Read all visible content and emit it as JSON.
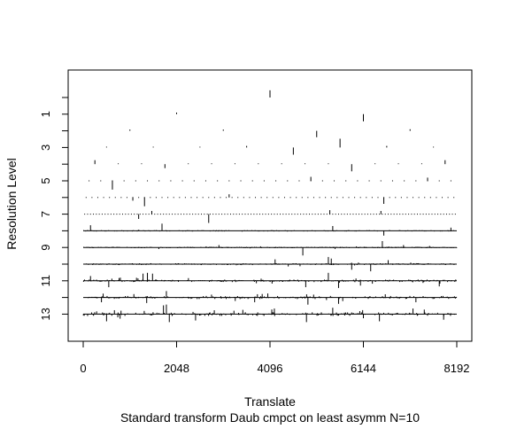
{
  "chart_data": {
    "type": "wavelet-coefficient-plot",
    "xlabel": "Translate",
    "ylabel": "Resolution Level",
    "subtitle": "Standard transform Daub cmpct on least asymm N=10",
    "x_ticks": [
      "0",
      "2048",
      "4096",
      "6144",
      "8192"
    ],
    "y_ticks": [
      "1",
      "3",
      "5",
      "7",
      "9",
      "11",
      "13"
    ],
    "xlim": [
      0,
      8192
    ],
    "ylim": [
      0,
      13
    ],
    "levels": [
      {
        "level": 0,
        "n": 1,
        "coefficients": [
          {
            "x": 4096,
            "amp": 0.45
          }
        ]
      },
      {
        "level": 1,
        "n": 2,
        "coefficients": [
          {
            "x": 2048,
            "amp": 0.1
          },
          {
            "x": 6144,
            "amp": -0.45
          }
        ]
      },
      {
        "level": 2,
        "n": 4,
        "coefficients": [
          {
            "x": 1024,
            "amp": 0.08
          },
          {
            "x": 3072,
            "amp": 0.08
          },
          {
            "x": 5120,
            "amp": -0.4
          },
          {
            "x": 7168,
            "amp": 0.1
          }
        ]
      },
      {
        "level": 3,
        "n": 8,
        "coefficients": [
          {
            "x": 512,
            "amp": 0.05
          },
          {
            "x": 1536,
            "amp": 0.05
          },
          {
            "x": 2560,
            "amp": 0.05
          },
          {
            "x": 3584,
            "amp": 0.1
          },
          {
            "x": 4608,
            "amp": -0.45
          },
          {
            "x": 5632,
            "amp": 0.55
          },
          {
            "x": 6656,
            "amp": 0.1
          },
          {
            "x": 7680,
            "amp": 0.05
          }
        ]
      },
      {
        "level": 4,
        "n": 16,
        "coefficients": [
          {
            "x": 256,
            "amp": 0.25
          },
          {
            "x": 768,
            "amp": 0.05
          },
          {
            "x": 1280,
            "amp": 0.05
          },
          {
            "x": 1792,
            "amp": -0.25
          },
          {
            "x": 2304,
            "amp": 0.05
          },
          {
            "x": 2816,
            "amp": 0.05
          },
          {
            "x": 3328,
            "amp": 0.05
          },
          {
            "x": 3840,
            "amp": 0.05
          },
          {
            "x": 4352,
            "amp": 0.05
          },
          {
            "x": 4864,
            "amp": 0.05
          },
          {
            "x": 5376,
            "amp": 0.05
          },
          {
            "x": 5888,
            "amp": -0.45
          },
          {
            "x": 6400,
            "amp": 0.05
          },
          {
            "x": 6912,
            "amp": 0.05
          },
          {
            "x": 7424,
            "amp": 0.05
          },
          {
            "x": 7936,
            "amp": 0.25
          }
        ]
      },
      {
        "level": 5,
        "n": 32,
        "base_amp": 0.04,
        "spikes": [
          {
            "x": 640,
            "amp": -0.55
          },
          {
            "x": 4992,
            "amp": 0.25
          },
          {
            "x": 7552,
            "amp": 0.2
          }
        ]
      },
      {
        "level": 6,
        "n": 64,
        "base_amp": 0.03,
        "spikes": [
          {
            "x": 1088,
            "amp": -0.2
          },
          {
            "x": 1344,
            "amp": -0.55
          },
          {
            "x": 3200,
            "amp": 0.2
          },
          {
            "x": 6592,
            "amp": -0.4
          }
        ]
      },
      {
        "level": 7,
        "n": 128,
        "base_amp": 0.03,
        "spikes": [
          {
            "x": 1216,
            "amp": -0.3
          },
          {
            "x": 1504,
            "amp": 0.2
          },
          {
            "x": 2752,
            "amp": -0.55
          },
          {
            "x": 5408,
            "amp": 0.25
          },
          {
            "x": 6528,
            "amp": 0.2
          }
        ]
      },
      {
        "level": 8,
        "n": 256,
        "base_amp": 0.03,
        "spikes": [
          {
            "x": 160,
            "amp": 0.35
          },
          {
            "x": 1728,
            "amp": 0.45
          },
          {
            "x": 5472,
            "amp": 0.3
          },
          {
            "x": 6592,
            "amp": -0.3
          },
          {
            "x": 8064,
            "amp": 0.2
          }
        ]
      },
      {
        "level": 9,
        "n": 512,
        "base_amp": 0.04,
        "spikes": [
          {
            "x": 2976,
            "amp": 0.15
          },
          {
            "x": 4816,
            "amp": -0.5
          },
          {
            "x": 6560,
            "amp": 0.4
          },
          {
            "x": 7024,
            "amp": 0.15
          }
        ]
      },
      {
        "level": 10,
        "n": 1024,
        "base_amp": 0.06,
        "spikes": [
          {
            "x": 4208,
            "amp": 0.3
          },
          {
            "x": 5376,
            "amp": 0.45
          },
          {
            "x": 5440,
            "amp": 0.35
          },
          {
            "x": 5888,
            "amp": -0.35
          },
          {
            "x": 6304,
            "amp": -0.45
          },
          {
            "x": 6688,
            "amp": 0.25
          }
        ]
      },
      {
        "level": 11,
        "n": 2048,
        "base_amp": 0.08,
        "spikes": [
          {
            "x": 160,
            "amp": 0.3
          },
          {
            "x": 560,
            "amp": -0.4
          },
          {
            "x": 1312,
            "amp": 0.45
          },
          {
            "x": 1408,
            "amp": 0.5
          },
          {
            "x": 1520,
            "amp": 0.45
          },
          {
            "x": 4880,
            "amp": -0.4
          },
          {
            "x": 5376,
            "amp": 0.5
          },
          {
            "x": 5600,
            "amp": -0.45
          },
          {
            "x": 6080,
            "amp": -0.3
          },
          {
            "x": 7808,
            "amp": -0.35
          }
        ]
      },
      {
        "level": 12,
        "n": 4096,
        "base_amp": 0.1,
        "spikes": [
          {
            "x": 400,
            "amp": -0.3
          },
          {
            "x": 1392,
            "amp": -0.35
          },
          {
            "x": 1824,
            "amp": 0.4
          },
          {
            "x": 3760,
            "amp": -0.3
          },
          {
            "x": 4048,
            "amp": 0.25
          },
          {
            "x": 4928,
            "amp": -0.45
          },
          {
            "x": 5600,
            "amp": -0.4
          },
          {
            "x": 6624,
            "amp": 0.2
          },
          {
            "x": 7296,
            "amp": -0.3
          }
        ]
      },
      {
        "level": 13,
        "n": 8192,
        "base_amp": 0.12,
        "spikes": [
          {
            "x": 512,
            "amp": -0.45
          },
          {
            "x": 1760,
            "amp": 0.55
          },
          {
            "x": 1824,
            "amp": 0.6
          },
          {
            "x": 1888,
            "amp": -0.5
          },
          {
            "x": 2464,
            "amp": -0.4
          },
          {
            "x": 4192,
            "amp": 0.35
          },
          {
            "x": 4896,
            "amp": -0.5
          },
          {
            "x": 5472,
            "amp": 0.4
          },
          {
            "x": 6496,
            "amp": -0.45
          },
          {
            "x": 7232,
            "amp": 0.35
          },
          {
            "x": 7904,
            "amp": -0.35
          }
        ]
      }
    ]
  }
}
